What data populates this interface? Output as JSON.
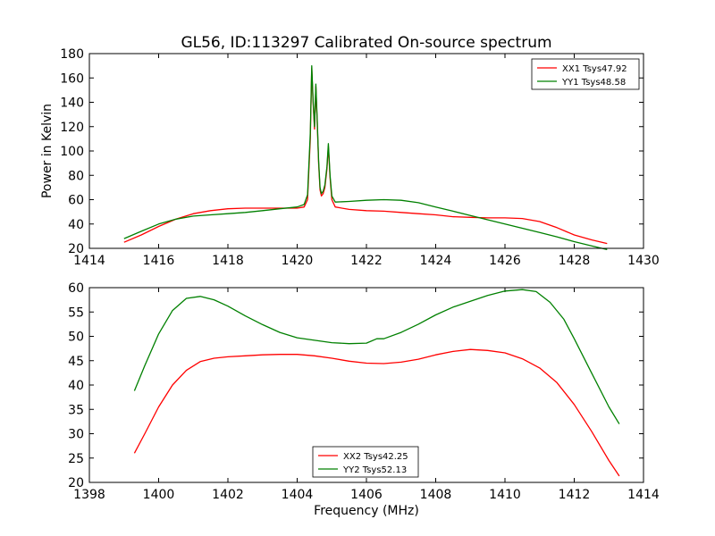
{
  "figure": {
    "title": "GL56, ID:113297 Calibrated On-source spectrum",
    "colors": {
      "red": "#ff0000",
      "green": "#008000"
    }
  },
  "chart_data": [
    {
      "type": "line",
      "title": "GL56, ID:113297 Calibrated On-source spectrum",
      "xlabel": "",
      "ylabel": "Power in Kelvin",
      "xlim": [
        1414,
        1430
      ],
      "ylim": [
        20,
        180
      ],
      "xticks": [
        "1414",
        "1416",
        "1418",
        "1420",
        "1422",
        "1424",
        "1426",
        "1428",
        "1430"
      ],
      "yticks": [
        "20",
        "40",
        "60",
        "80",
        "100",
        "120",
        "140",
        "160",
        "180"
      ],
      "grid": false,
      "legend_position": "top-right",
      "series": [
        {
          "name": "XX1 Tsys47.92",
          "color": "#ff0000",
          "x": [
            1415.0,
            1415.5,
            1416.0,
            1416.5,
            1417.0,
            1417.5,
            1418.0,
            1418.5,
            1419.0,
            1419.5,
            1420.0,
            1420.2,
            1420.3,
            1420.38,
            1420.42,
            1420.46,
            1420.5,
            1420.54,
            1420.58,
            1420.62,
            1420.66,
            1420.7,
            1420.75,
            1420.8,
            1420.86,
            1420.9,
            1420.95,
            1421.0,
            1421.1,
            1421.5,
            1422.0,
            1422.5,
            1423.0,
            1423.5,
            1424.0,
            1424.5,
            1425.0,
            1425.5,
            1426.0,
            1426.5,
            1427.0,
            1427.5,
            1428.0,
            1428.5,
            1428.95
          ],
          "y": [
            25,
            31,
            38,
            44,
            48.5,
            51,
            52.5,
            53,
            53,
            53,
            53,
            54,
            60,
            110,
            168,
            140,
            118,
            153,
            122,
            90,
            68,
            63,
            65,
            70,
            85,
            104,
            78,
            60,
            54,
            52,
            51,
            50.5,
            49.5,
            48.5,
            47.5,
            46,
            45.5,
            45,
            45,
            44.5,
            42,
            37,
            31,
            27,
            24
          ]
        },
        {
          "name": "YY1 Tsys48.58",
          "color": "#008000",
          "x": [
            1415.0,
            1415.5,
            1416.0,
            1416.5,
            1417.0,
            1417.5,
            1418.0,
            1418.5,
            1419.0,
            1419.5,
            1420.0,
            1420.2,
            1420.3,
            1420.38,
            1420.42,
            1420.46,
            1420.5,
            1420.54,
            1420.58,
            1420.62,
            1420.66,
            1420.7,
            1420.75,
            1420.8,
            1420.86,
            1420.9,
            1420.95,
            1421.0,
            1421.1,
            1421.5,
            1422.0,
            1422.5,
            1423.0,
            1423.5,
            1424.0,
            1424.5,
            1425.0,
            1425.5,
            1426.0,
            1426.5,
            1427.0,
            1427.5,
            1428.0,
            1428.5,
            1428.95
          ],
          "y": [
            28,
            34,
            40,
            44,
            46.5,
            47.5,
            48.5,
            49.5,
            51,
            52.5,
            54,
            56,
            64,
            115,
            170,
            142,
            120,
            155,
            124,
            92,
            70,
            65,
            67,
            72,
            87,
            106,
            80,
            63,
            58,
            58.5,
            59.5,
            60,
            59.5,
            57.5,
            54,
            50.5,
            47,
            43.5,
            40,
            36.5,
            33,
            29.5,
            25.5,
            22,
            19
          ]
        }
      ]
    },
    {
      "type": "line",
      "title": "",
      "xlabel": "Frequency (MHz)",
      "ylabel": "",
      "xlim": [
        1398,
        1414
      ],
      "ylim": [
        20,
        60
      ],
      "xticks": [
        "1398",
        "1400",
        "1402",
        "1404",
        "1406",
        "1408",
        "1410",
        "1412",
        "1414"
      ],
      "yticks": [
        "20",
        "25",
        "30",
        "35",
        "40",
        "45",
        "50",
        "55",
        "60"
      ],
      "grid": false,
      "legend_position": "bottom-center",
      "series": [
        {
          "name": "XX2 Tsys42.25",
          "color": "#ff0000",
          "x": [
            1399.3,
            1399.6,
            1400.0,
            1400.4,
            1400.8,
            1401.2,
            1401.6,
            1402.0,
            1402.5,
            1403.0,
            1403.5,
            1404.0,
            1404.5,
            1405.0,
            1405.5,
            1406.0,
            1406.5,
            1407.0,
            1407.5,
            1408.0,
            1408.5,
            1409.0,
            1409.5,
            1410.0,
            1410.5,
            1411.0,
            1411.5,
            1412.0,
            1412.5,
            1413.0,
            1413.3
          ],
          "y": [
            26,
            30,
            35.5,
            40,
            43,
            44.8,
            45.5,
            45.8,
            46,
            46.2,
            46.3,
            46.3,
            46,
            45.5,
            44.9,
            44.5,
            44.4,
            44.7,
            45.3,
            46.2,
            46.9,
            47.3,
            47.1,
            46.6,
            45.4,
            43.5,
            40.5,
            36,
            30.5,
            24.5,
            21.3
          ]
        },
        {
          "name": "YY2 Tsys52.13",
          "color": "#008000",
          "x": [
            1399.3,
            1399.6,
            1400.0,
            1400.4,
            1400.8,
            1401.2,
            1401.6,
            1402.0,
            1402.5,
            1403.0,
            1403.5,
            1404.0,
            1404.5,
            1405.0,
            1405.5,
            1406.0,
            1406.3,
            1406.5,
            1407.0,
            1407.5,
            1408.0,
            1408.5,
            1409.0,
            1409.5,
            1410.0,
            1410.5,
            1410.9,
            1411.3,
            1411.7,
            1412.0,
            1412.5,
            1413.0,
            1413.3
          ],
          "y": [
            38.8,
            44,
            50.5,
            55.3,
            57.8,
            58.2,
            57.5,
            56.2,
            54.2,
            52.4,
            50.8,
            49.7,
            49.2,
            48.7,
            48.5,
            48.6,
            49.5,
            49.5,
            50.8,
            52.5,
            54.4,
            56,
            57.2,
            58.4,
            59.3,
            59.6,
            59.2,
            57,
            53.5,
            49.5,
            42.5,
            35.5,
            32
          ]
        }
      ]
    }
  ]
}
